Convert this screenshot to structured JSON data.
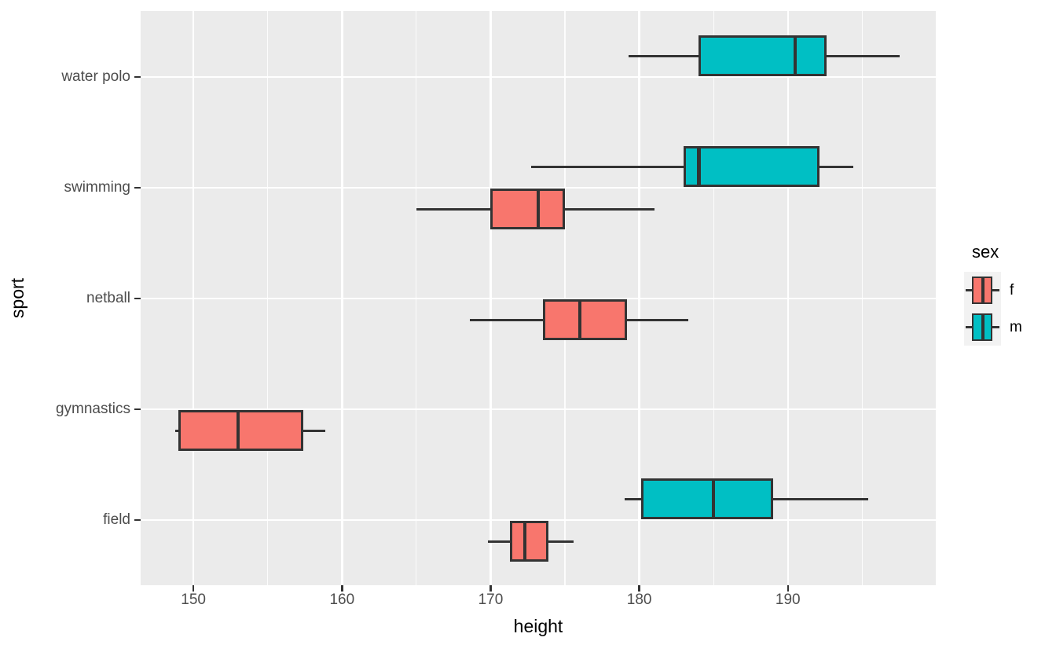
{
  "chart_data": {
    "type": "boxplot",
    "orientation": "horizontal",
    "xlabel": "height",
    "ylabel": "sport",
    "x_ticks": [
      150,
      160,
      170,
      180,
      190
    ],
    "x_minor_ticks": [
      145,
      155,
      165,
      175,
      185,
      195
    ],
    "xlim": [
      146.45,
      199.95
    ],
    "categories_top_to_bottom": [
      "water polo",
      "swimming",
      "netball",
      "gymnastics",
      "field"
    ],
    "grid": "on",
    "legend": {
      "title": "sex",
      "position": "right",
      "entries": [
        {
          "label": "f",
          "color": "#F8766D"
        },
        {
          "label": "m",
          "color": "#00BFC4"
        }
      ]
    },
    "boxes": [
      {
        "sport": "water polo",
        "sex": "m",
        "whisker_min": 179.3,
        "q1": 184.0,
        "median": 190.5,
        "q3": 192.6,
        "whisker_max": 197.5
      },
      {
        "sport": "swimming",
        "sex": "m",
        "whisker_min": 172.7,
        "q1": 183.0,
        "median": 184.0,
        "q3": 192.1,
        "whisker_max": 194.4
      },
      {
        "sport": "swimming",
        "sex": "f",
        "whisker_min": 165.0,
        "q1": 170.0,
        "median": 173.2,
        "q3": 175.0,
        "whisker_max": 181.0
      },
      {
        "sport": "netball",
        "sex": "f",
        "whisker_min": 168.6,
        "q1": 173.5,
        "median": 176.0,
        "q3": 179.2,
        "whisker_max": 183.3
      },
      {
        "sport": "gymnastics",
        "sex": "f",
        "whisker_min": 148.8,
        "q1": 149.0,
        "median": 153.0,
        "q3": 157.4,
        "whisker_max": 158.9
      },
      {
        "sport": "field",
        "sex": "m",
        "whisker_min": 179.0,
        "q1": 180.1,
        "median": 185.0,
        "q3": 189.0,
        "whisker_max": 195.4
      },
      {
        "sport": "field",
        "sex": "f",
        "whisker_min": 169.8,
        "q1": 171.3,
        "median": 172.3,
        "q3": 173.9,
        "whisker_max": 175.6
      }
    ]
  },
  "style": {
    "panel_bg": "#EBEBEB",
    "grid_color": "#FFFFFF",
    "box_stroke": "#333333",
    "axis_text_color": "#4D4D4D",
    "axis_title_color": "#000000",
    "fill_f": "#F8766D",
    "fill_m": "#00BFC4",
    "legend_key_bg": "#F2F2F2"
  }
}
